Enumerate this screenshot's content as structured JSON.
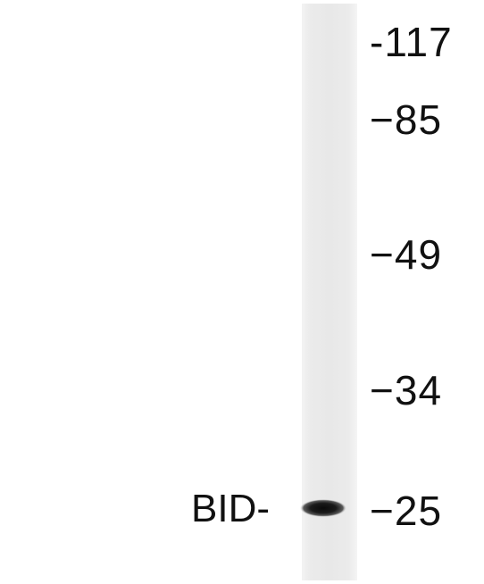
{
  "band": {
    "label": "BID-"
  },
  "markers": [
    {
      "label": "-117",
      "kda": 117
    },
    {
      "label": "−85",
      "kda": 85
    },
    {
      "label": "−49",
      "kda": 49
    },
    {
      "label": "−34",
      "kda": 34
    },
    {
      "label": "−25",
      "kda": 25
    }
  ]
}
